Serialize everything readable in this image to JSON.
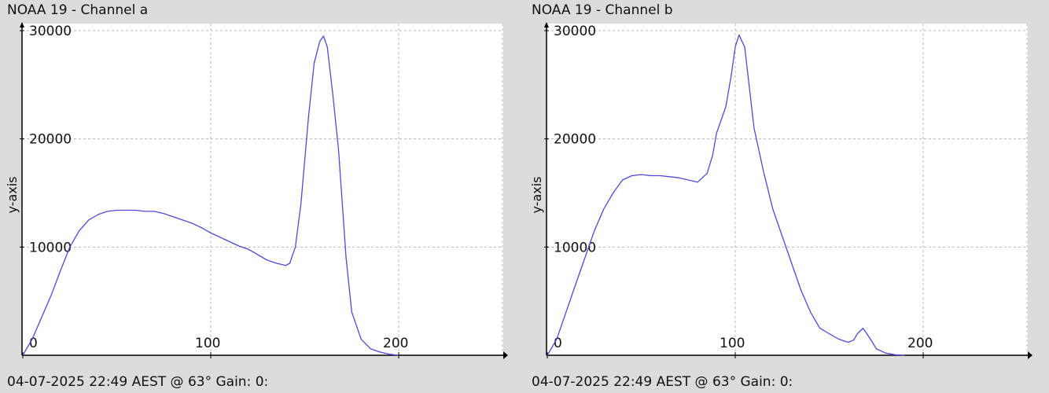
{
  "panels": [
    {
      "title": "NOAA 19 - Channel a",
      "footer": "04-07-2025 22:49 AEST @ 63° Gain: 0:",
      "chart_data": {
        "type": "line",
        "title": "NOAA 19 - Channel a",
        "ylabel": "y-axis",
        "xlabel": "",
        "xlim": [
          0,
          255
        ],
        "ylim": [
          0,
          30000
        ],
        "grid": true,
        "x_ticks": [
          "0",
          "100",
          "200"
        ],
        "y_ticks": [
          "10000",
          "20000",
          "30000"
        ],
        "line_color": "#4b4bd6",
        "series": [
          {
            "x": [
              0,
              5,
              10,
              15,
              20,
              25,
              30,
              35,
              40,
              45,
              50,
              55,
              60,
              65,
              70,
              75,
              80,
              85,
              90,
              95,
              100,
              105,
              110,
              115,
              120,
              125,
              130,
              135,
              140,
              142,
              145,
              148,
              150,
              152,
              155,
              158,
              160,
              162,
              165,
              168,
              170,
              172,
              175,
              180,
              185,
              190,
              195,
              200
            ],
            "values": [
              0,
              1500,
              3500,
              5500,
              7800,
              10000,
              11500,
              12500,
              13000,
              13300,
              13400,
              13400,
              13400,
              13300,
              13300,
              13100,
              12800,
              12500,
              12200,
              11800,
              11300,
              10900,
              10500,
              10100,
              9800,
              9300,
              8800,
              8500,
              8300,
              8500,
              10000,
              14000,
              18000,
              22000,
              27000,
              29000,
              29500,
              28500,
              24000,
              19000,
              14000,
              9000,
              4000,
              1500,
              600,
              300,
              100,
              0
            ]
          }
        ]
      }
    },
    {
      "title": "NOAA 19 - Channel b",
      "footer": "04-07-2025 22:49 AEST @ 63° Gain: 0:",
      "chart_data": {
        "type": "line",
        "title": "NOAA 19 - Channel b",
        "ylabel": "y-axis",
        "xlabel": "",
        "xlim": [
          0,
          255
        ],
        "ylim": [
          0,
          30000
        ],
        "grid": true,
        "x_ticks": [
          "0",
          "100",
          "200"
        ],
        "y_ticks": [
          "10000",
          "20000",
          "30000"
        ],
        "line_color": "#4b4bd6",
        "series": [
          {
            "x": [
              0,
              5,
              10,
              15,
              20,
              25,
              30,
              35,
              40,
              45,
              50,
              55,
              60,
              65,
              70,
              75,
              80,
              85,
              88,
              90,
              95,
              98,
              100,
              102,
              105,
              110,
              115,
              120,
              125,
              130,
              135,
              140,
              145,
              150,
              155,
              160,
              163,
              165,
              168,
              170,
              173,
              175,
              180,
              185,
              190
            ],
            "values": [
              0,
              1500,
              4000,
              6500,
              9000,
              11500,
              13500,
              15000,
              16200,
              16600,
              16700,
              16600,
              16600,
              16500,
              16400,
              16200,
              16000,
              16800,
              18500,
              20500,
              23000,
              26000,
              28500,
              29600,
              28500,
              21000,
              17000,
              13500,
              11000,
              8500,
              6000,
              4000,
              2500,
              2000,
              1500,
              1200,
              1400,
              2000,
              2500,
              2000,
              1200,
              600,
              200,
              50,
              0
            ]
          }
        ]
      }
    }
  ]
}
